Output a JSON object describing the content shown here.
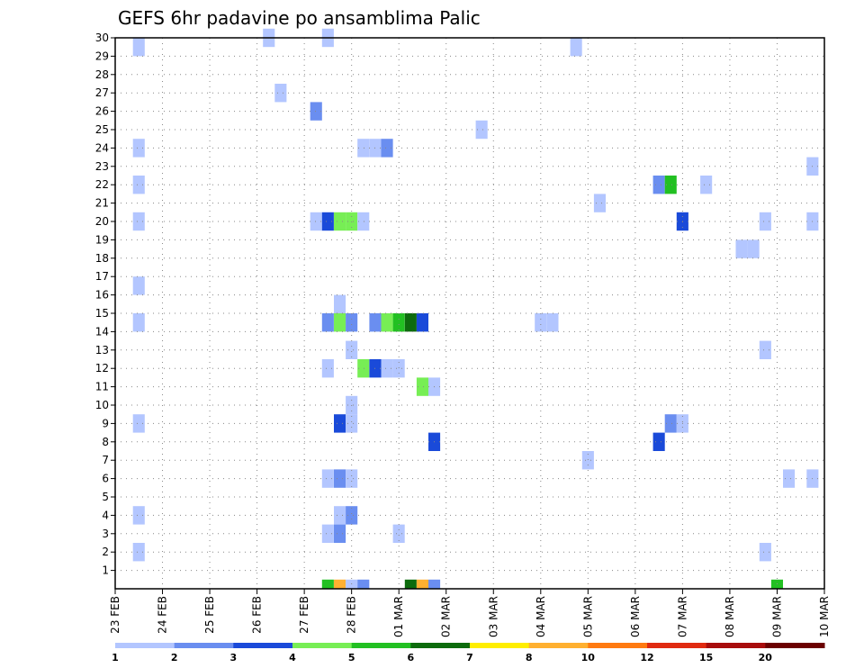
{
  "chart_data": {
    "type": "heatmap",
    "title": "GEFS 6hr padavine po ansamblima Palic",
    "xlabel": "",
    "ylabel": "",
    "x_ticks": [
      "23 FEB",
      "24 FEB",
      "25 FEB",
      "26 FEB",
      "27 FEB",
      "28 FEB",
      "01 MAR",
      "02 MAR",
      "03 MAR",
      "04 MAR",
      "05 MAR",
      "06 MAR",
      "07 MAR",
      "08 MAR",
      "09 MAR",
      "10 MAR"
    ],
    "y_ticks": [
      1,
      2,
      3,
      4,
      5,
      6,
      7,
      8,
      9,
      10,
      11,
      12,
      13,
      14,
      15,
      16,
      17,
      18,
      19,
      20,
      21,
      22,
      23,
      24,
      25,
      26,
      27,
      28,
      29,
      30
    ],
    "xlim_days": [
      0,
      15
    ],
    "ylim": [
      0,
      30
    ],
    "colorbar": {
      "labels": [
        "1",
        "2",
        "3",
        "4",
        "5",
        "6",
        "7",
        "8",
        "10",
        "12",
        "15",
        "20"
      ],
      "colors": [
        "#b3c6ff",
        "#6a8ef0",
        "#1a4ad9",
        "#77ee55",
        "#22c022",
        "#0d6b0d",
        "#ffee00",
        "#ffb030",
        "#ff7a10",
        "#e02a10",
        "#a80c0c",
        "#6b0000"
      ]
    },
    "cells": [
      {
        "day": 0.5,
        "member": 29.5,
        "level": 1
      },
      {
        "day": 0.5,
        "member": 24,
        "level": 1
      },
      {
        "day": 0.5,
        "member": 22,
        "level": 1
      },
      {
        "day": 0.5,
        "member": 20,
        "level": 1
      },
      {
        "day": 0.5,
        "member": 16.5,
        "level": 1
      },
      {
        "day": 0.5,
        "member": 14.5,
        "level": 1
      },
      {
        "day": 0.5,
        "member": 9,
        "level": 1
      },
      {
        "day": 0.5,
        "member": 4,
        "level": 1
      },
      {
        "day": 0.5,
        "member": 2,
        "level": 1
      },
      {
        "day": 3.25,
        "member": 30,
        "level": 1
      },
      {
        "day": 3.5,
        "member": 27,
        "level": 1
      },
      {
        "day": 4.25,
        "member": 26,
        "level": 2
      },
      {
        "day": 4.5,
        "member": 30,
        "level": 1
      },
      {
        "day": 4.25,
        "member": 20,
        "level": 1
      },
      {
        "day": 4.5,
        "member": 20,
        "level": 3
      },
      {
        "day": 4.75,
        "member": 20,
        "level": 4
      },
      {
        "day": 5.0,
        "member": 20,
        "level": 4
      },
      {
        "day": 5.25,
        "member": 20,
        "level": 1
      },
      {
        "day": 4.75,
        "member": 15.5,
        "level": 1
      },
      {
        "day": 4.5,
        "member": 14.5,
        "level": 2
      },
      {
        "day": 4.75,
        "member": 14.5,
        "level": 4
      },
      {
        "day": 5.0,
        "member": 14.5,
        "level": 2
      },
      {
        "day": 5.5,
        "member": 14.5,
        "level": 2
      },
      {
        "day": 5.75,
        "member": 14.5,
        "level": 4
      },
      {
        "day": 6.0,
        "member": 14.5,
        "level": 5
      },
      {
        "day": 6.25,
        "member": 14.5,
        "level": 6
      },
      {
        "day": 6.5,
        "member": 14.5,
        "level": 3
      },
      {
        "day": 5.0,
        "member": 13,
        "level": 1
      },
      {
        "day": 4.5,
        "member": 12,
        "level": 1
      },
      {
        "day": 5.25,
        "member": 12,
        "level": 4
      },
      {
        "day": 5.5,
        "member": 12,
        "level": 3
      },
      {
        "day": 5.75,
        "member": 12,
        "level": 1
      },
      {
        "day": 6.0,
        "member": 12,
        "level": 1
      },
      {
        "day": 6.5,
        "member": 11,
        "level": 4
      },
      {
        "day": 6.75,
        "member": 11,
        "level": 1
      },
      {
        "day": 5.0,
        "member": 10,
        "level": 1
      },
      {
        "day": 4.75,
        "member": 9,
        "level": 3
      },
      {
        "day": 5.0,
        "member": 9,
        "level": 1
      },
      {
        "day": 6.75,
        "member": 8,
        "level": 3
      },
      {
        "day": 4.5,
        "member": 6,
        "level": 1
      },
      {
        "day": 4.75,
        "member": 6,
        "level": 2
      },
      {
        "day": 5.0,
        "member": 6,
        "level": 1
      },
      {
        "day": 4.75,
        "member": 4,
        "level": 1
      },
      {
        "day": 5.0,
        "member": 4,
        "level": 2
      },
      {
        "day": 4.5,
        "member": 3,
        "level": 1
      },
      {
        "day": 4.75,
        "member": 3,
        "level": 2
      },
      {
        "day": 6.0,
        "member": 3,
        "level": 1
      },
      {
        "day": 5.25,
        "member": 24,
        "level": 1
      },
      {
        "day": 5.5,
        "member": 24,
        "level": 1
      },
      {
        "day": 5.75,
        "member": 24,
        "level": 2
      },
      {
        "day": 7.75,
        "member": 25,
        "level": 1
      },
      {
        "day": 9.0,
        "member": 14.5,
        "level": 1
      },
      {
        "day": 9.25,
        "member": 14.5,
        "level": 1
      },
      {
        "day": 9.75,
        "member": 29.5,
        "level": 1
      },
      {
        "day": 10.0,
        "member": 7,
        "level": 1
      },
      {
        "day": 10.25,
        "member": 21,
        "level": 1
      },
      {
        "day": 11.5,
        "member": 22,
        "level": 2
      },
      {
        "day": 11.75,
        "member": 22,
        "level": 5
      },
      {
        "day": 12.0,
        "member": 20,
        "level": 3
      },
      {
        "day": 12.5,
        "member": 22,
        "level": 1
      },
      {
        "day": 11.75,
        "member": 9,
        "level": 2
      },
      {
        "day": 12.0,
        "member": 9,
        "level": 1
      },
      {
        "day": 11.5,
        "member": 8,
        "level": 3
      },
      {
        "day": 13.25,
        "member": 18.5,
        "level": 1
      },
      {
        "day": 13.5,
        "member": 18.5,
        "level": 1
      },
      {
        "day": 13.75,
        "member": 20,
        "level": 1
      },
      {
        "day": 13.75,
        "member": 13,
        "level": 1
      },
      {
        "day": 13.75,
        "member": 2,
        "level": 1
      },
      {
        "day": 14.25,
        "member": 6,
        "level": 1
      },
      {
        "day": 14.75,
        "member": 6,
        "level": 1
      },
      {
        "day": 14.75,
        "member": 20,
        "level": 1
      },
      {
        "day": 14.75,
        "member": 23,
        "level": 1
      },
      {
        "day": 4.5,
        "member": 0,
        "level": 5
      },
      {
        "day": 4.75,
        "member": 0,
        "level": 8
      },
      {
        "day": 5.0,
        "member": 0,
        "level": 1
      },
      {
        "day": 5.25,
        "member": 0,
        "level": 2
      },
      {
        "day": 6.25,
        "member": 0,
        "level": 6
      },
      {
        "day": 6.5,
        "member": 0,
        "level": 8
      },
      {
        "day": 6.75,
        "member": 0,
        "level": 2
      },
      {
        "day": 14.0,
        "member": 0,
        "level": 5
      }
    ]
  }
}
